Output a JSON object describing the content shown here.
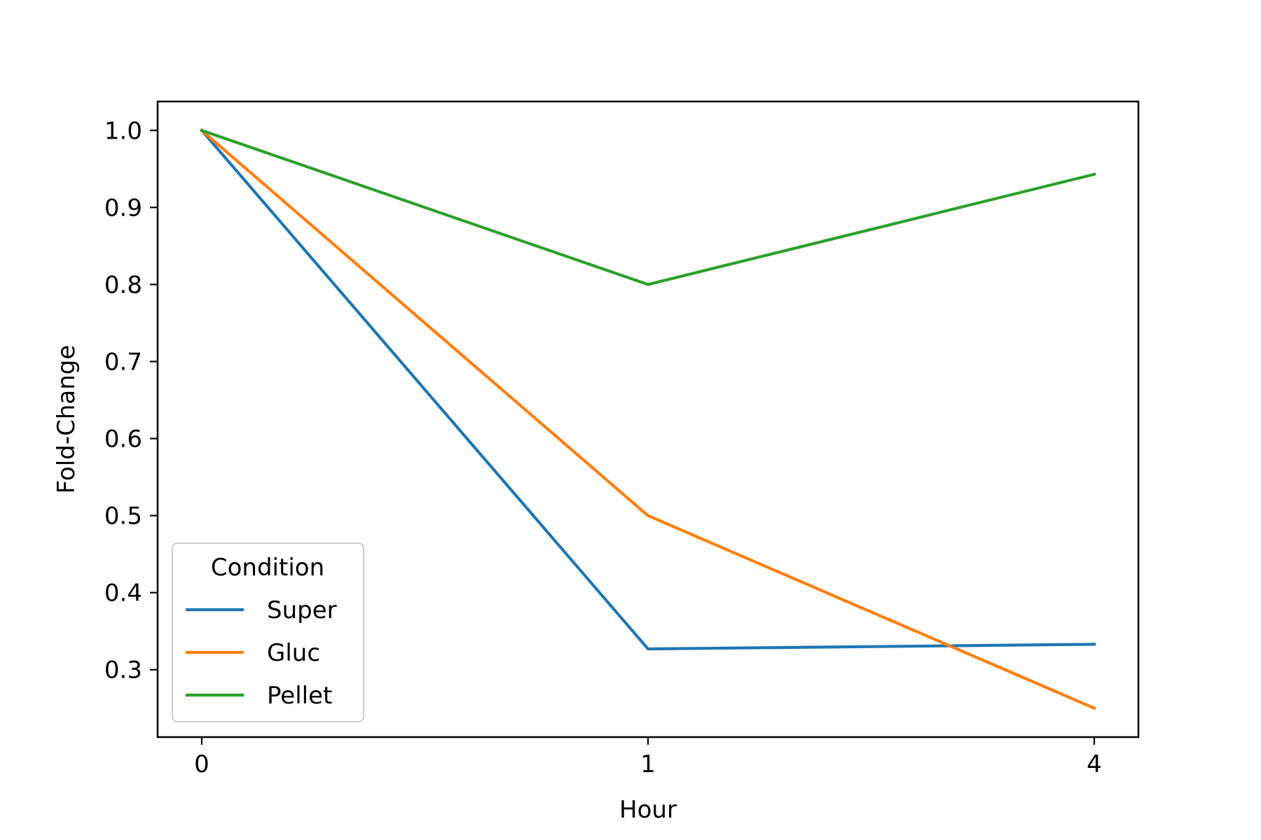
{
  "chart_data": {
    "type": "line",
    "title": "",
    "xlabel": "Hour",
    "ylabel": "Fold-Change",
    "categories": [
      "0",
      "1",
      "4"
    ],
    "series": [
      {
        "name": "Super",
        "color": "#1f77b4",
        "values": [
          1.0,
          0.327,
          0.333
        ]
      },
      {
        "name": "Gluc",
        "color": "#ff7f0e",
        "values": [
          1.0,
          0.5,
          0.25
        ]
      },
      {
        "name": "Pellet",
        "color": "#2ca02c",
        "values": [
          1.0,
          0.8,
          0.943
        ]
      }
    ],
    "ylim": [
      0.2125,
      1.0375
    ],
    "yticks": [
      "0.3",
      "0.4",
      "0.5",
      "0.6",
      "0.7",
      "0.8",
      "0.9",
      "1.0"
    ],
    "legend": {
      "title": "Condition",
      "placement": "lower-left"
    },
    "grid": false
  }
}
